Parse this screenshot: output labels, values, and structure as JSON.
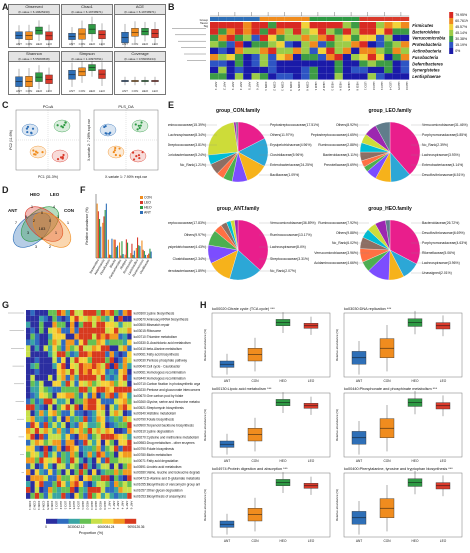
{
  "panel_letters": [
    "A",
    "B",
    "C",
    "D",
    "E",
    "F",
    "G",
    "H"
  ],
  "A": {
    "boxes": [
      {
        "title": "Observed",
        "sub": "(F-value = 6.19625230)"
      },
      {
        "title": "Chao1",
        "sub": "(F-value = 6.19738971)"
      },
      {
        "title": "ACE",
        "sub": "(F-value = 6.19738971)"
      },
      {
        "title": "Shannon",
        "sub": "(F-value = 5.55069538)"
      },
      {
        "title": "Simpson",
        "sub": "(F-value = 1.43979791)"
      },
      {
        "title": "Coverage",
        "sub": "(F-value = 0.56036134)"
      }
    ],
    "groups": [
      "ANT",
      "CON",
      "HEO",
      "LEO"
    ],
    "group_colors": [
      "#2e6fb7",
      "#f08c1e",
      "#2e9a44",
      "#d93a2b"
    ]
  },
  "B": {
    "phyla": [
      "Firmicutes",
      "Bacteroidetes",
      "Verrucomicrobia",
      "Proteobacteria",
      "Actinobacteria",
      "Fusobacteria",
      "Deferribacteres",
      "Synergistetes",
      "Lentisphaerae"
    ],
    "percents": [
      "79.95%",
      "60.761%",
      "45.57%",
      "45.14%",
      "30.38%",
      "15.19%",
      "0%"
    ],
    "legend_title_group": "Group",
    "legend_groups": [
      "ANT",
      "CON",
      "HEO",
      "LEO"
    ],
    "legend_title_taxon": "Taxon",
    "legend_taxon": "bacteria",
    "legend_p": [
      "P-val < 0.05",
      "P-val >= 0.05"
    ],
    "row_labels": [
      "Group",
      "Taxon",
      "Sig"
    ],
    "samples": [
      "ANT 1",
      "ANT 2",
      "ANT 3",
      "ANT 4",
      "ANT 5",
      "ANT 6",
      "CON 1",
      "CON 2",
      "CON 3",
      "CON 4",
      "CON 5",
      "CON 6",
      "HEO 1",
      "HEO 2",
      "HEO 3",
      "HEO 4",
      "HEO 5",
      "HEO 6",
      "LEO 1",
      "LEO 2",
      "LEO 3",
      "LEO 4",
      "LEO 5",
      "LEO 6"
    ]
  },
  "C": {
    "left_title": "PCoA",
    "left_x": "PC1 (31.3%)",
    "left_y": "PC2 (11.6%)",
    "right_title": "PLS_DA",
    "right_x": "X-variate 1: 7.90% expl.var",
    "right_y": "X-variate 2: 7.26% expl.var"
  },
  "D": {
    "sets": [
      "ANT",
      "HEO",
      "LEO",
      "CON"
    ],
    "set_colors": [
      "#2e6fb7",
      "#2e9a44",
      "#d93a2b",
      "#f08c1e"
    ],
    "counts": [
      "7",
      "1",
      "0",
      "4",
      "1",
      "9",
      "2",
      "0",
      "1",
      "0",
      "3",
      "183",
      "1",
      "3",
      "2"
    ]
  },
  "E": {
    "pies": [
      {
        "title": "group_CON.family",
        "labels": [
          "Peptostreptococcaceae(17.51%)",
          "Ruminococcaceae(15.39%)",
          "Others(11.97%)",
          "Lachnospiraceae(8.34%)",
          "Erysipelotrichaceae(4.96%)",
          "Streptococcaceae(3.81%)",
          "Clostridiaceae(5.96%)",
          "Coriobacteriaceae(5.24%)",
          "Enterobacteriaceae(24.25%)",
          "No_Rank(1.21%)",
          "Bacillaceae(1.09%)"
        ]
      },
      {
        "title": "group_LEO.family",
        "labels": [
          "Verrucomicrobiaceae(31.46%)",
          "Others(8.92%)",
          "Porphyromonadaceae(6.85%)",
          "Peptostreptococcaceae(4.65%)",
          "No_Rank(2.39%)",
          "Ruminococcaceae(2.88%)",
          "Lachnospiraceae(3.93%)",
          "Bacteroidaceae(4.11%)",
          "Enterobacteriaceae(4.14%)",
          "Prevotellaceae(5.69%)",
          "Desulfovibrionaceae(6.51%)"
        ]
      },
      {
        "title": "group_ANT.family",
        "labels": [
          "Verrucomicrobiaceae(36.89%)",
          "Peptostreptococcaceae(17.83%)",
          "Ruminococcaceae(13.17%)",
          "Others(9.97%)",
          "Lachnospiraceae(8.4%)",
          "Erysipelotrichaceae(4.43%)",
          "Streptococcaceae(3.31%)",
          "Clostridiaceae(2.34%)",
          "No_Rank(2.07%)",
          "Enterobacteriaceae(1.89%)"
        ]
      },
      {
        "title": "group_HEO.family",
        "labels": [
          "Bacteroidaceae(26.72%)",
          "Ruminococcaceae(7.92%)",
          "Desulfovibrionaceae(6.69%)",
          "Others(9.88%)",
          "Porphyromonadaceae(4.63%)",
          "No_Rank(6.02%)",
          "Rikenellaceae(5.06%)",
          "Verrucomicrobiaceae(3.96%)",
          "Lachnospiraceae(3.96%)",
          "Acidaminococcaceae(4.66%)",
          "Unassigned(2.01%)"
        ]
      }
    ]
  },
  "F": {
    "ylabel": "Relative abundance (%)",
    "legend": [
      "CON",
      "LEO",
      "HEO",
      "ANT"
    ],
    "legend_colors": [
      "#f08c1e",
      "#d93a2b",
      "#2e9a44",
      "#2e6fb7"
    ],
    "categories": [
      "Bacteroides",
      "Akkermansia",
      "Desulfovibrio",
      "Blautia",
      "Parabacteroides",
      "Alistipes",
      "Romboutsia",
      "Lactobacillus",
      "Ruminococcus",
      "Oscillibacter"
    ]
  },
  "G": {
    "pathways": [
      "ko00300:Lysine biosynthesis",
      "ko00670:Aminoacyl-tRNA biosynthesis",
      "ko00500:Mismatch repair",
      "ko03015:Ribosome",
      "ko00710:Thiamine metabolism",
      "ko00330:D-Arachidonic acid metabolism",
      "ko00410:beta-Alanine metabolism",
      "ko00061:Fatty acid biosynthesis",
      "ko00030:Pentose phosphate pathway",
      "ko00040:Cell cycle - Caulobacter",
      "ko00061:Homologous recombination",
      "ko03440:Homologous recombination",
      "ko00710:Carbon fixation in photosynthetic organisms",
      "ko00230:Pentose and glucuronate interconversions",
      "ko00670:One carbon pool by folate",
      "ko00260:Glycine, serine and threonine metabolism",
      "ko00521:Streptomycin biosynthesis",
      "ko00340:Histidine metabolism",
      "ko00790:Folate biosynthesis",
      "ko00900:Terpenoid backbone biosynthesis",
      "ko00310:Lysine degradation",
      "ko00270:Cysteine and methionine metabolism",
      "ko00983:Drug metabolism - other enzymes",
      "ko00790:Folate biosynthesis",
      "ko00780:Biotin metabolism",
      "ko00071:Fatty acid degradation",
      "ko00591:Linoleic acid metabolism",
      "ko00280:Valine, leucine and isoleucine degradation",
      "ko00473:D-Alanine and D-glutamate metabolism",
      "ko01055:Biosynthesis of vancomycin group antibiotics",
      "ko01057:Other glycan degradation",
      "ko01053:Biosynthesis of ansamycins"
    ],
    "samples": [
      "CON 1",
      "CON 2",
      "CON 3",
      "CON 4",
      "CON 5",
      "CON 6",
      "LEO 1",
      "LEO 2",
      "LEO 3",
      "LEO 4",
      "LEO 5",
      "LEO 6",
      "HEO 1",
      "HEO 2",
      "HEO 3",
      "HEO 4",
      "HEO 5",
      "HEO 6",
      "ANT 1",
      "ANT 2",
      "ANT 3",
      "ANT 4",
      "ANT 5",
      "ANT 6"
    ],
    "colorbar_ticks": [
      "0",
      "3030042.12",
      "6060084.24",
      "9090126.36"
    ],
    "colorbar_label": "Proportion (%)"
  },
  "H": {
    "ylabel": "Relative abundance (%)",
    "xgroups": [
      "ANT",
      "CON",
      "HEO",
      "LEO"
    ],
    "xcolors": [
      "#2e6fb7",
      "#f08c1e",
      "#2e9a44",
      "#d93a2b"
    ],
    "plots": [
      {
        "title": "ko00020:Citrate cycle (TCA cycle) ***"
      },
      {
        "title": "ko03030:DNA replication ***"
      },
      {
        "title": "ko00130:Lipoic acid metabolism ***"
      },
      {
        "title": "ko00440:Phosphonate and phosphinate metabolism ***"
      },
      {
        "title": "ko04974:Protein digestion and absorption ***"
      },
      {
        "title": "ko00400:Phenylalanine, tyrosine and tryptophan biosynthesis ***"
      }
    ]
  }
}
